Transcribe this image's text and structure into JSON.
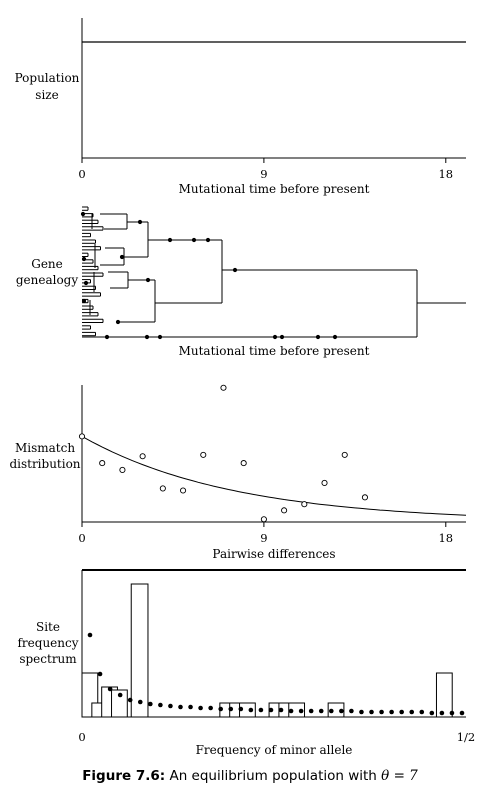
{
  "panels": {
    "population": {
      "ylabel_line1": "Population",
      "ylabel_line2": "size",
      "xlabel": "Mutational time before present",
      "ticks": [
        "0",
        "9",
        "18"
      ]
    },
    "genealogy": {
      "ylabel_line1": "Gene",
      "ylabel_line2": "genealogy",
      "xlabel": "Mutational time before present"
    },
    "mismatch": {
      "ylabel_line1": "Mismatch",
      "ylabel_line2": "distribution",
      "xlabel": "Pairwise differences",
      "ticks": [
        "0",
        "9",
        "18"
      ]
    },
    "sfs": {
      "ylabel_line1": "Site",
      "ylabel_line2": "frequency",
      "ylabel_line3": "spectrum",
      "xlabel": "Frequency of minor allele",
      "ticks": [
        "0",
        "1/2"
      ]
    }
  },
  "caption": {
    "label": "Figure 7.6:",
    "text": "An equilibrium population with",
    "math": "θ = 7"
  },
  "chart_data": [
    {
      "type": "line",
      "panel": "population",
      "xlabel": "Mutational time before present",
      "ylabel": "Population size",
      "xlim": [
        0,
        19
      ],
      "ticks": [
        0,
        9,
        18
      ],
      "series": [
        {
          "x": [
            0,
            19
          ],
          "y": [
            1,
            1
          ]
        }
      ]
    },
    {
      "type": "scatter",
      "panel": "mismatch",
      "xlabel": "Pairwise differences",
      "ylabel": "Mismatch distribution",
      "xlim": [
        0,
        19
      ],
      "ticks": [
        0,
        9,
        18
      ],
      "observed": {
        "x": [
          0,
          1,
          2,
          3,
          4,
          5,
          6,
          7,
          8,
          9,
          10,
          11,
          12,
          13,
          14
        ],
        "y": [
          0.125,
          0.086,
          0.076,
          0.096,
          0.049,
          0.046,
          0.098,
          0.196,
          0.086,
          0.004,
          0.017,
          0.026,
          0.057,
          0.098,
          0.036
        ]
      },
      "expected": {
        "theta": 7
      }
    },
    {
      "type": "bar",
      "panel": "sfs",
      "xlabel": "Frequency of minor allele",
      "ylabel": "Site frequency spectrum",
      "ticks": [
        "0",
        "1/2"
      ],
      "bars_observed": [
        4,
        1,
        1,
        2,
        1,
        0,
        0,
        0,
        0,
        0,
        0,
        0,
        0,
        0,
        0,
        0,
        0,
        0,
        0,
        0,
        0,
        0,
        0,
        0,
        0,
        0,
        0,
        0,
        0,
        0,
        0,
        0,
        0,
        0,
        0,
        0,
        0,
        0,
        0
      ],
      "note": "unused"
    }
  ]
}
